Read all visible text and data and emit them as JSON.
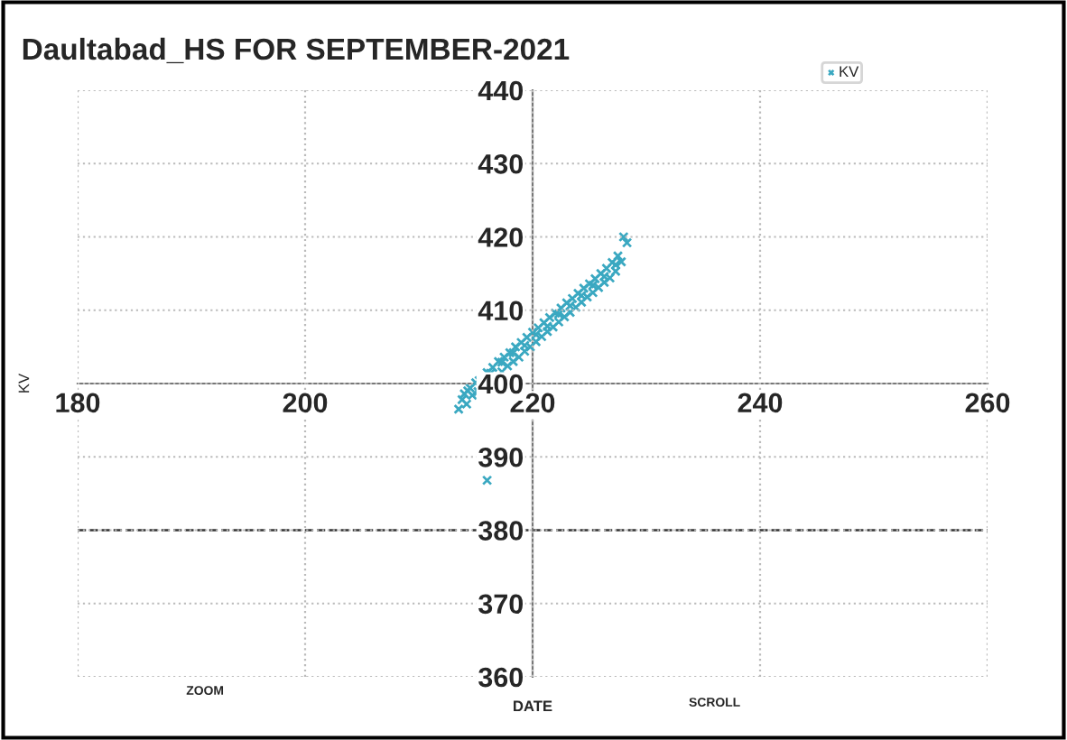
{
  "chart_data": {
    "type": "scatter",
    "title": "Daultabad_HS FOR SEPTEMBER-2021",
    "xlabel": "DATE",
    "ylabel": "KV",
    "xlim": [
      180,
      260
    ],
    "xticks": [
      180,
      200,
      220,
      240,
      260
    ],
    "ylim": [
      360,
      440
    ],
    "yticks": [
      360,
      370,
      380,
      390,
      400,
      410,
      420,
      430,
      440
    ],
    "grid": true,
    "legend": "top right",
    "marker": "cross",
    "ref_lines": [
      {
        "axis": "y",
        "value": 380,
        "line_style": "dashed",
        "color": "#333333"
      }
    ],
    "annotations": [
      "ZOOM",
      "SCROLL"
    ],
    "series": [
      {
        "name": "KV",
        "color": "#3aa8c1",
        "x": [
          213.5,
          213.8,
          214.0,
          214.2,
          214.5,
          214.7,
          215.0,
          215.2,
          216.0,
          216.5,
          217.0,
          217.3,
          217.5,
          217.8,
          218.0,
          218.3,
          218.5,
          218.8,
          219.0,
          219.3,
          219.5,
          219.8,
          220.0,
          220.3,
          220.5,
          220.8,
          221.0,
          221.3,
          221.5,
          221.8,
          222.0,
          222.3,
          222.5,
          222.8,
          223.0,
          223.3,
          223.5,
          223.8,
          224.0,
          224.3,
          224.5,
          224.8,
          225.0,
          225.3,
          225.5,
          225.8,
          226.0,
          226.3,
          226.5,
          226.8,
          227.0,
          227.3,
          227.5,
          227.8,
          228.0,
          228.3,
          214.3,
          215.3,
          216.3,
          217.3,
          218.3,
          219.3,
          220.3,
          221.3,
          222.3,
          223.3,
          224.3,
          225.3,
          226.3,
          227.3,
          216.0
        ],
        "values": [
          396.5,
          397.8,
          398.6,
          397.2,
          399.4,
          398.4,
          400.1,
          398.9,
          401.5,
          402.2,
          403.0,
          401.6,
          403.6,
          402.4,
          404.2,
          403.0,
          405.0,
          403.6,
          405.6,
          404.4,
          406.3,
          405.0,
          407.0,
          405.7,
          407.6,
          406.4,
          408.3,
          407.1,
          409.0,
          407.7,
          409.6,
          408.4,
          410.3,
          409.1,
          411.0,
          409.7,
          411.6,
          410.4,
          412.3,
          411.1,
          413.0,
          411.8,
          413.6,
          412.4,
          414.3,
          413.1,
          415.0,
          413.8,
          415.7,
          414.4,
          416.5,
          415.3,
          417.4,
          416.6,
          420.0,
          419.2,
          399.0,
          400.4,
          401.4,
          402.9,
          404.2,
          405.2,
          406.7,
          407.8,
          409.5,
          410.6,
          412.0,
          413.4,
          414.6,
          416.2,
          386.8
        ]
      }
    ]
  }
}
